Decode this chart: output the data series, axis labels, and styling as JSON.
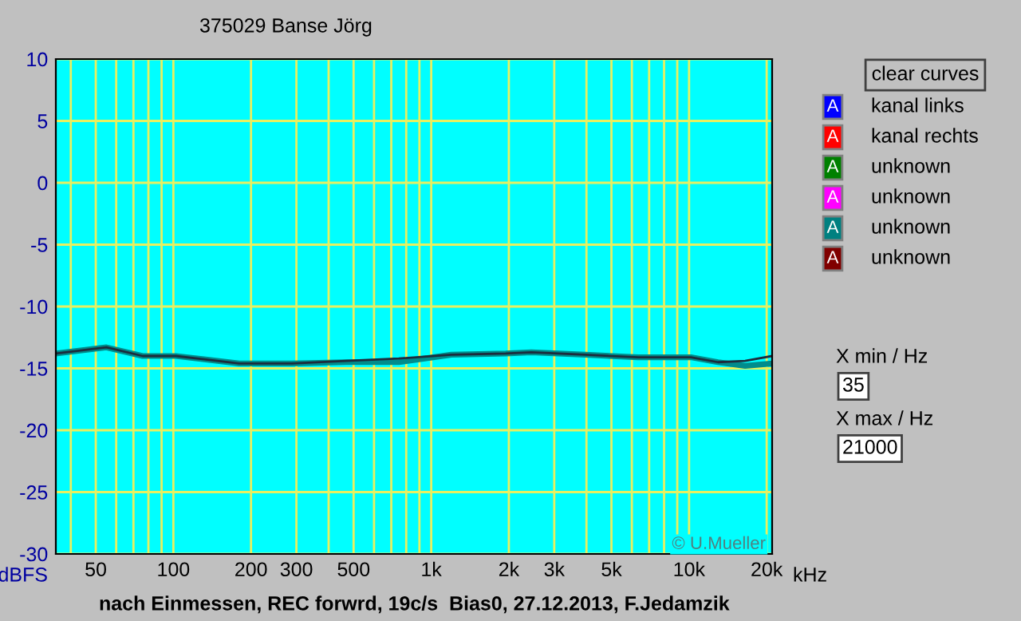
{
  "chart_data": {
    "type": "line",
    "title": "375029 Banse Jörg",
    "ylabel": "dBFS",
    "log": "x",
    "grid": true,
    "marker": "none",
    "line_style": "solid",
    "legend": false,
    "xlim": [
      35,
      21000
    ],
    "ylim": [
      -30,
      10
    ],
    "xticks": [
      {
        "value": 40,
        "label": null
      },
      50,
      {
        "value": 60,
        "label": null
      },
      {
        "value": 70,
        "label": null
      },
      {
        "value": 80,
        "label": null
      },
      {
        "value": 90,
        "label": null
      },
      100,
      200,
      300,
      {
        "value": 400,
        "label": null
      },
      500,
      {
        "value": 600,
        "label": null
      },
      {
        "value": 700,
        "label": null
      },
      {
        "value": 800,
        "label": null
      },
      {
        "value": 900,
        "label": null
      },
      {
        "value": 1000,
        "label": "1k"
      },
      {
        "value": 2000,
        "label": "2k"
      },
      {
        "value": 3000,
        "label": "3k"
      },
      {
        "value": 4000,
        "label": null
      },
      {
        "value": 5000,
        "label": "5k"
      },
      {
        "value": 6000,
        "label": null
      },
      {
        "value": 7000,
        "label": null
      },
      {
        "value": 8000,
        "label": null
      },
      {
        "value": 9000,
        "label": null
      },
      {
        "value": 10000,
        "label": "10k"
      },
      {
        "value": 20000,
        "label": "20k"
      }
    ],
    "xlabel": "kHz",
    "yticks": [
      10,
      5,
      0,
      -5,
      -10,
      -15,
      -20,
      -25,
      -30
    ],
    "x": [
      35,
      55,
      76,
      102,
      180,
      288,
      468,
      748,
      1197,
      1945,
      2446,
      3963,
      6350,
      10160,
      12950,
      16500,
      21000
    ],
    "series": [
      {
        "color": "#008c8c",
        "values": [
          -13.8,
          -13.3,
          -14.0,
          -14.0,
          -14.6,
          -14.6,
          -14.5,
          -14.5,
          -13.9,
          -13.8,
          -13.7,
          -13.9,
          -14.1,
          -14.1,
          -14.5,
          -14.8,
          -14.6
        ]
      },
      {
        "color": "#1c2c3c",
        "values": [
          -13.8,
          -13.3,
          -14.0,
          -14.0,
          -14.6,
          -14.6,
          -14.4,
          -14.2,
          -13.9,
          -13.8,
          -13.7,
          -13.9,
          -14.1,
          -14.1,
          -14.5,
          -14.4,
          -14.0
        ]
      }
    ],
    "annotations": [
      "© U.Mueller",
      "nach Einmessen, REC forwrd, 19c/s  Bias0, 27.12.2013, F.Jedamzik",
      "clear curves",
      "kanal links",
      "kanal rechts",
      "unknown",
      "unknown",
      "unknown",
      "unknown",
      "X min / Hz",
      "35",
      "X max / Hz",
      "21000",
      "A",
      "A",
      "A",
      "A",
      "A",
      "A"
    ]
  }
}
